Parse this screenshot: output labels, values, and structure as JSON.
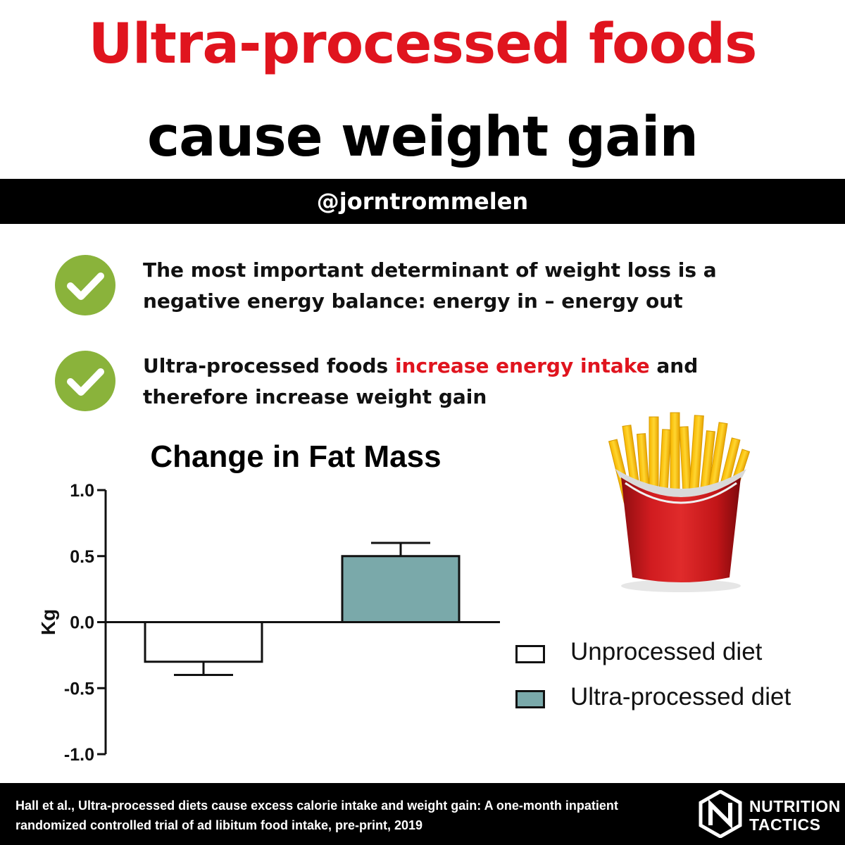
{
  "header": {
    "title_line1": "Ultra-processed foods",
    "title_line2": "cause weight gain",
    "handle": "@jorntrommelen"
  },
  "bullets": [
    {
      "icon": "check-icon",
      "line1": "The most important determinant of weight loss is a",
      "line2": "negative energy balance: energy in – energy out"
    },
    {
      "icon": "check-icon",
      "line1_before": "Ultra-processed foods ",
      "line1_highlight": "increase energy intake",
      "line1_after": " and",
      "line2": "therefore increase weight gain"
    }
  ],
  "colors": {
    "title_red": "#e0141e",
    "check_green": "#8ab33b",
    "bar_ultra": "#7aa9aa",
    "bar_unprocessed": "#ffffff"
  },
  "chart_data": {
    "type": "bar",
    "title": "Change in Fat Mass",
    "ylabel": "Kg",
    "xlabel": "",
    "ylim": [
      -1.0,
      1.0
    ],
    "yticks": [
      1.0,
      0.5,
      0.0,
      -0.5,
      -1.0
    ],
    "ytick_labels": [
      "1.0",
      "0.5",
      "0.0",
      "-0.5",
      "-1.0"
    ],
    "categories": [
      "Unprocessed diet",
      "Ultra-processed diet"
    ],
    "series": [
      {
        "name": "Unprocessed diet",
        "value": -0.3,
        "error": 0.1,
        "color": "#ffffff"
      },
      {
        "name": "Ultra-processed diet",
        "value": 0.5,
        "error": 0.1,
        "color": "#7aa9aa"
      }
    ],
    "grid": false,
    "legend": "right"
  },
  "illustration": {
    "icon": "french-fries-icon"
  },
  "footer": {
    "citation_line1": "Hall et al., Ultra-processed diets cause excess calorie intake and weight gain: A one-month inpatient",
    "citation_line2": "randomized controlled trial of ad libitum food intake, pre-print, 2019",
    "brand_line1": "NUTRITION",
    "brand_line2": "TACTICS",
    "brand_icon": "nutrition-tactics-logo-icon"
  }
}
